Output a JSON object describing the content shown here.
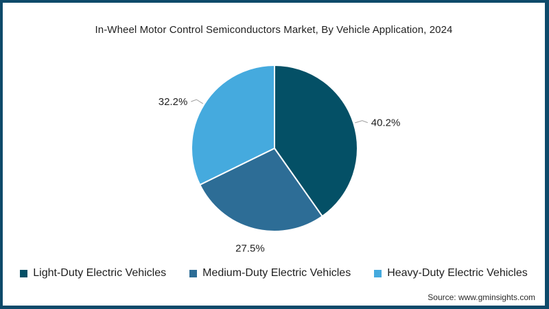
{
  "header": {
    "title": "In-Wheel Motor Control Semiconductors Market, By Vehicle Application, 2024"
  },
  "chart_data": {
    "type": "pie",
    "title": "In-Wheel Motor Control Semiconductors Market, By Vehicle Application, 2024",
    "start_angle_deg": 0,
    "direction": "clockwise",
    "legend_position": "bottom",
    "value_unit": "%",
    "series": [
      {
        "name": "Light-Duty Electric Vehicles",
        "value": 40.2,
        "label": "40.2%",
        "color": "#045066"
      },
      {
        "name": "Medium-Duty Electric Vehicles",
        "value": 27.5,
        "label": "27.5%",
        "color": "#2d6d96"
      },
      {
        "name": "Heavy-Duty Electric Vehicles",
        "value": 32.2,
        "label": "32.2%",
        "color": "#45aade"
      }
    ]
  },
  "footer": {
    "source": "Source: www.gminsights.com"
  },
  "frame": {
    "border_color": "#0e4a6a",
    "background": "#ffffff",
    "label_color": "#1f1f1f",
    "leader_line_color": "#9e9e9e",
    "slice_separator_color": "#ffffff"
  }
}
